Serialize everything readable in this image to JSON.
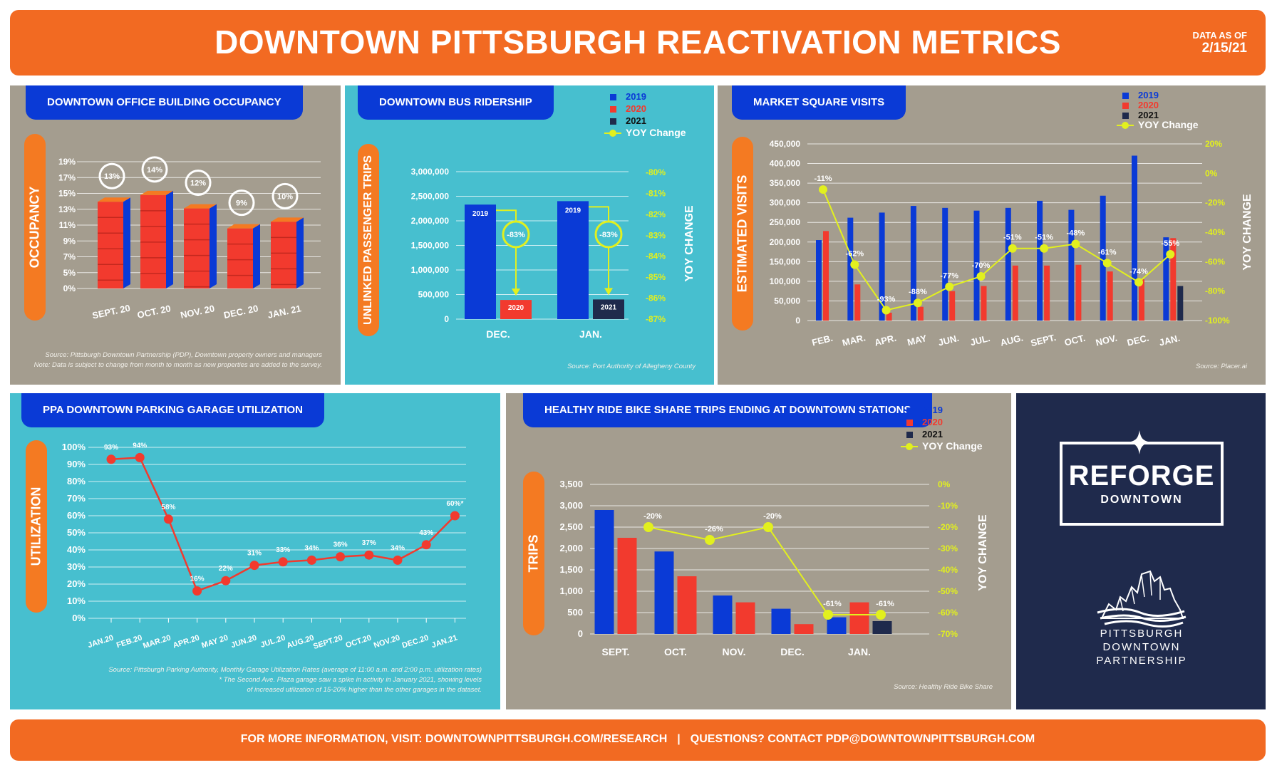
{
  "header": {
    "title": "DOWNTOWN PITTSBURGH REACTIVATION METRICS",
    "as_of_label": "DATA AS OF",
    "as_of_date": "2/15/21"
  },
  "footer": {
    "more_info": "FOR MORE INFORMATION, VISIT: DOWNTOWNPITTSBURGH.COM/RESEARCH",
    "separator": "|",
    "questions": "QUESTIONS? CONTACT PDP@DOWNTOWNPITTSBURGH.COM"
  },
  "colors": {
    "orange": "#f26a22",
    "blue": "#0a3ad6",
    "red": "#f23a2e",
    "navy": "#1f2a4c",
    "yoy": "#e2f01e",
    "gray_panel": "#a49d8f",
    "teal_panel": "#47bfcf"
  },
  "logo": {
    "reforge": "REFORGE",
    "downtown": "DOWNTOWN",
    "partnership_lines": [
      "PITTSBURGH",
      "DOWNTOWN",
      "PARTNERSHIP"
    ],
    "icons": [
      "sparkle-icon",
      "pdp-skyline-icon"
    ]
  },
  "chart_data": [
    {
      "id": "office",
      "type": "bar",
      "title": "DOWNTOWN OFFICE BUILDING OCCUPANCY",
      "ylabel": "OCCUPANCY",
      "yticks": [
        "19%",
        "17%",
        "15%",
        "13%",
        "11%",
        "9%",
        "7%",
        "5%",
        "0%"
      ],
      "categories": [
        "SEPT. 20",
        "OCT. 20",
        "NOV. 20",
        "DEC. 20",
        "JAN. 21"
      ],
      "values": [
        13,
        14,
        12,
        9,
        10
      ],
      "value_labels": [
        "13%",
        "14%",
        "12%",
        "9%",
        "10%"
      ],
      "source_lines": [
        "Source: Pittsburgh Downtown Partnership (PDP), Downtown property owners and managers",
        "Note: Data is subject to change from month to month as new properties are added to the survey."
      ]
    },
    {
      "id": "bus",
      "type": "bar",
      "title": "DOWNTOWN BUS RIDERSHIP",
      "ylabel": "UNLINKED PASSENGER TRIPS",
      "y2label": "YOY CHANGE",
      "yticks": [
        "3,000,000",
        "2,500,000",
        "2,000,000",
        "1,500,000",
        "1,000,000",
        "500,000",
        "0"
      ],
      "ylim": [
        0,
        3000000
      ],
      "y2ticks": [
        "-80%",
        "-81%",
        "-82%",
        "-83%",
        "-84%",
        "-85%",
        "-86%",
        "-87%"
      ],
      "legend": [
        "2019",
        "2020",
        "2021",
        "YOY Change"
      ],
      "categories": [
        "DEC.",
        "JAN."
      ],
      "bars": [
        {
          "label": "2019",
          "value": 2330000,
          "series": "2019"
        },
        {
          "label": "2020",
          "value": 390000,
          "series": "2020"
        },
        {
          "label": "2019",
          "value": 2400000,
          "series": "2019"
        },
        {
          "label": "2021",
          "value": 400000,
          "series": "2021"
        }
      ],
      "yoy_labels": [
        "-83%",
        "-83%"
      ],
      "source": "Source: Port Authority of Allegheny County"
    },
    {
      "id": "market",
      "type": "bar",
      "title": "MARKET SQUARE VISITS",
      "ylabel": "ESTIMATED VISITS",
      "y2label": "YOY CHANGE",
      "yticks": [
        "450,000",
        "400,000",
        "350,000",
        "300,000",
        "250,000",
        "200,000",
        "150,000",
        "100,000",
        "50,000",
        "0"
      ],
      "ylim": [
        0,
        450000
      ],
      "y2ticks": [
        "20%",
        "0%",
        "-20%",
        "-40%",
        "-60%",
        "-80%",
        "-100%"
      ],
      "y2lim": [
        -100,
        20
      ],
      "legend": [
        "2019",
        "2020",
        "2021",
        "YOY Change"
      ],
      "categories": [
        "FEB.",
        "MAR.",
        "APR.",
        "MAY",
        "JUN.",
        "JUL.",
        "AUG.",
        "SEPT.",
        "OCT.",
        "NOV.",
        "DEC.",
        "JAN."
      ],
      "series": [
        {
          "name": "2019",
          "values": [
            205000,
            262000,
            275000,
            292000,
            287000,
            280000,
            287000,
            305000,
            282000,
            318000,
            420000,
            212000
          ]
        },
        {
          "name": "2020",
          "values": [
            228000,
            92000,
            20000,
            35000,
            75000,
            88000,
            140000,
            140000,
            142000,
            125000,
            105000,
            210000
          ]
        },
        {
          "name": "2021",
          "values": [
            null,
            null,
            null,
            null,
            null,
            null,
            null,
            null,
            null,
            null,
            null,
            88000
          ]
        }
      ],
      "yoy": [
        -11,
        -62,
        -93,
        -88,
        -77,
        -70,
        -51,
        -51,
        -48,
        -61,
        -74,
        -55
      ],
      "yoy_labels": [
        "-11%",
        "-62%",
        "-93%",
        "-88%",
        "-77%",
        "-70%",
        "-51%",
        "-51%",
        "-48%",
        "-61%",
        "-74%",
        "-55%"
      ],
      "source": "Source: Placer.ai"
    },
    {
      "id": "parking",
      "type": "line",
      "title": "PPA DOWNTOWN PARKING GARAGE UTILIZATION",
      "ylabel": "UTILIZATION",
      "yticks": [
        "100%",
        "90%",
        "80%",
        "70%",
        "60%",
        "50%",
        "40%",
        "30%",
        "20%",
        "10%",
        "0%"
      ],
      "ylim": [
        0,
        100
      ],
      "x": [
        "JAN.20",
        "FEB.20",
        "MAR.20",
        "APR.20",
        "MAY 20",
        "JUN.20",
        "JUL.20",
        "AUG.20",
        "SEPT.20",
        "OCT.20",
        "NOV.20",
        "DEC.20",
        "JAN.21"
      ],
      "values": [
        93,
        94,
        58,
        16,
        22,
        31,
        33,
        34,
        36,
        37,
        34,
        43,
        60
      ],
      "value_labels": [
        "93%",
        "94%",
        "58%",
        "16%",
        "22%",
        "31%",
        "33%",
        "34%",
        "36%",
        "37%",
        "34%",
        "43%",
        "60%*"
      ],
      "source_lines": [
        "Source: Pittsburgh Parking Authority, Monthly Garage Utilization Rates (average of 11:00 a.m. and 2:00 p.m. utilization rates)",
        "* The Second Ave. Plaza garage saw a spike in activity in January 2021, showing levels",
        "of increased utilization of 15-20% higher than the other garages in the dataset."
      ]
    },
    {
      "id": "bike",
      "type": "bar",
      "title": "HEALTHY RIDE BIKE SHARE TRIPS ENDING AT DOWNTOWN STATIONS",
      "ylabel": "TRIPS",
      "y2label": "YOY CHANGE",
      "yticks": [
        "3,500",
        "3,000",
        "2,500",
        "2,000",
        "1,500",
        "1,000",
        "500",
        "0"
      ],
      "ylim": [
        0,
        3500
      ],
      "y2ticks": [
        "0%",
        "-10%",
        "-20%",
        "-30%",
        "-40%",
        "-50%",
        "-60%",
        "-70%"
      ],
      "y2lim": [
        -70,
        0
      ],
      "legend": [
        "2019",
        "2020",
        "2021",
        "YOY Change"
      ],
      "categories": [
        "SEPT.",
        "OCT.",
        "NOV.",
        "DEC.",
        "JAN."
      ],
      "series": [
        {
          "name": "2019",
          "values": [
            2900,
            1930,
            900,
            590,
            390
          ]
        },
        {
          "name": "2020",
          "values": [
            2250,
            1350,
            740,
            230,
            740
          ]
        },
        {
          "name": "2021",
          "values": [
            null,
            null,
            null,
            null,
            300
          ]
        }
      ],
      "yoy": [
        -20,
        -26,
        -20,
        -61,
        -61
      ],
      "yoy_labels": [
        "-20%",
        "-26%",
        "-20%",
        "-61%",
        "-61%"
      ],
      "source": "Source: Healthy Ride Bike Share"
    }
  ]
}
